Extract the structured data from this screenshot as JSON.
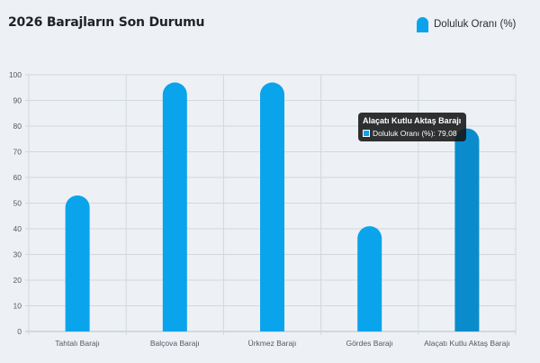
{
  "page": {
    "title": "2026 Barajların Son Durumu"
  },
  "legend": {
    "label": "Doluluk Oranı (%)",
    "color": "#0aa4ec"
  },
  "tooltip": {
    "title": "Alaçatı Kutlu Aktaş Barajı",
    "series_label": "Doluluk Oranı (%): 79,08"
  },
  "chart_data": {
    "type": "bar",
    "title": "2026 Barajların Son Durumu",
    "xlabel": "",
    "ylabel": "",
    "ylim": [
      0,
      100
    ],
    "yticks": [
      0,
      10,
      20,
      30,
      40,
      50,
      60,
      70,
      80,
      90,
      100
    ],
    "grid": true,
    "legend_position": "top-right",
    "categories": [
      "Tahtalı Barajı",
      "Balçova Barajı",
      "Ürkmez Barajı",
      "Gördes Barajı",
      "Alaçatı Kutlu Aktaş Barajı"
    ],
    "series": [
      {
        "name": "Doluluk Oranı (%)",
        "color": "#0aa4ec",
        "hover_color": "#0a8ccc",
        "values": [
          53,
          97,
          97,
          41,
          79.08
        ]
      }
    ],
    "highlighted_index": 4
  }
}
